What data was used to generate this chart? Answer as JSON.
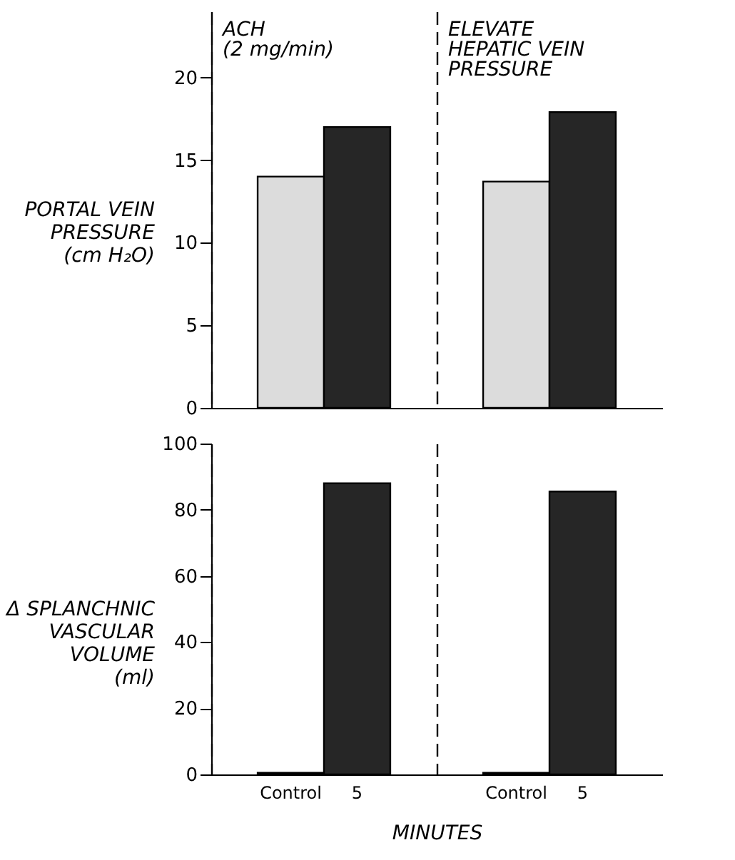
{
  "chart_data": [
    {
      "type": "bar",
      "annotations": [
        "ACH\n(2 mg/min)",
        "ELEVATE\nHEPATIC VEIN\nPRESSURE"
      ],
      "ylabel": "PORTAL VEIN\nPRESSURE\n(cm H₂O)",
      "categories": [
        null,
        null,
        null,
        null
      ],
      "values": [
        14,
        17,
        13.7,
        17.9
      ],
      "colors": [
        "#dcdcdc",
        "#262626",
        "#dcdcdc",
        "#262626"
      ],
      "ylim": [
        0,
        24
      ],
      "yticks": [
        0,
        5,
        10,
        15,
        20
      ],
      "grid": "x",
      "tick_labels": "y"
    },
    {
      "type": "bar",
      "ylabel": "Δ SPLANCHNIC\nVASCULAR\nVOLUME\n(ml)",
      "xlabel": "MINUTES",
      "categories": [
        "Control",
        "5",
        "Control",
        "5"
      ],
      "values": [
        0.5,
        88,
        0.5,
        85.5
      ],
      "colors": [
        "#262626",
        "#262626",
        "#262626",
        "#262626"
      ],
      "ylim": [
        0,
        100
      ],
      "yticks": [
        0,
        20,
        40,
        60,
        80,
        100
      ],
      "grid": "x"
    }
  ]
}
